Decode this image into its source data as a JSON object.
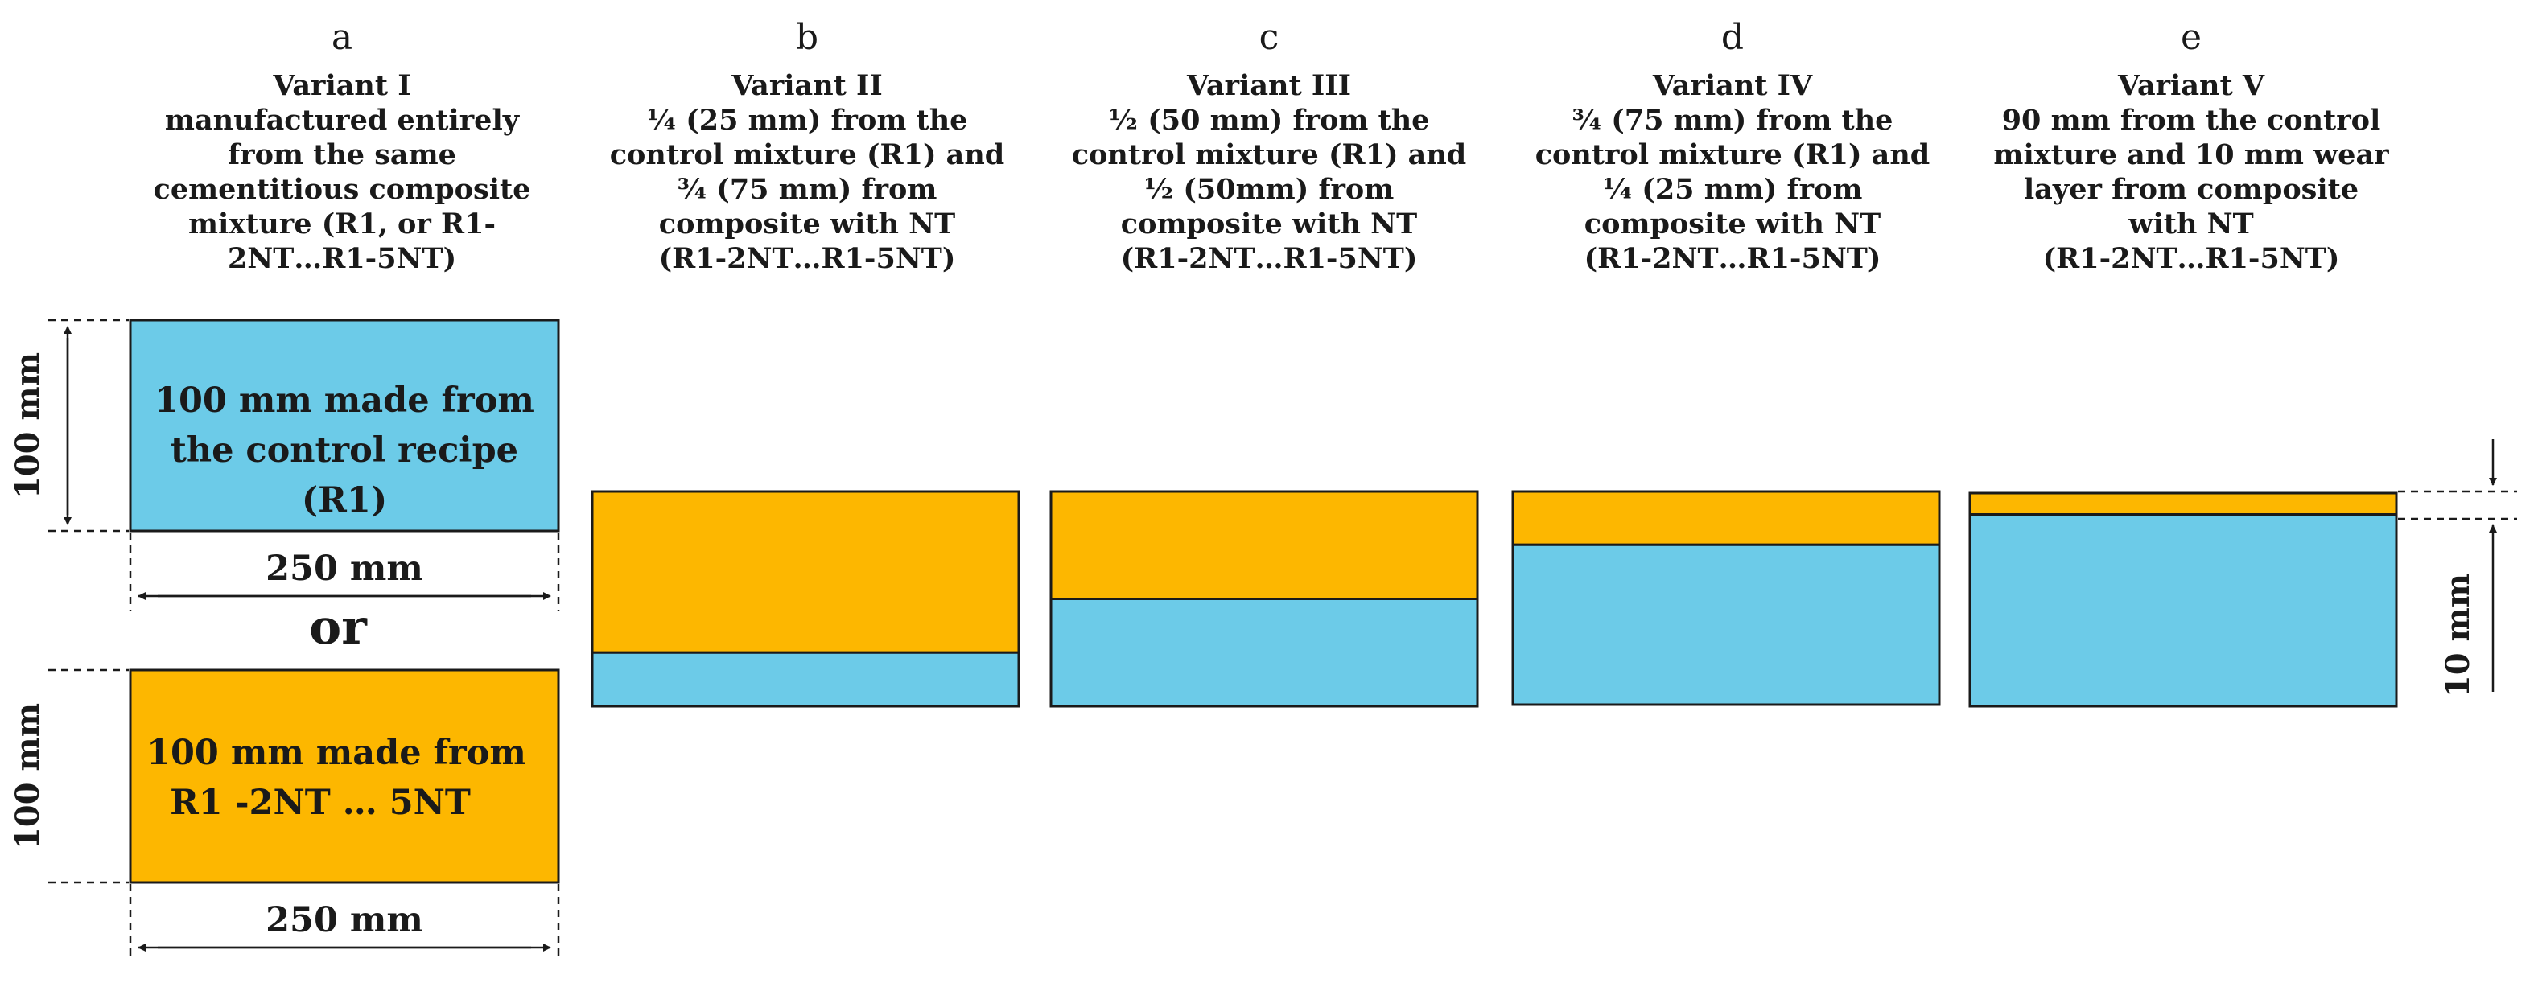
{
  "colors": {
    "control_blue": "#6ccbe8",
    "composite_orange": "#fdb700",
    "outline": "#1a1a1a"
  },
  "columns": [
    {
      "letter": "a",
      "lines": [
        "Variant I",
        "manufactured entirely",
        "from the same",
        "cementitious composite",
        "mixture (R1, or R1-",
        "2NT…R1-5NT)"
      ],
      "wear_fraction": null
    },
    {
      "letter": "b",
      "lines": [
        "Variant II",
        "¼ (25 mm) from the",
        "control mixture (R1) and",
        "¾  (75 mm) from",
        "composite with NT",
        "(R1-2NT…R1-5NT)"
      ],
      "wear_fraction": 0.75
    },
    {
      "letter": "c",
      "lines": [
        "Variant III",
        "½ (50 mm) from the",
        "control mixture (R1) and",
        "½  (50mm) from",
        "composite with NT",
        "(R1-2NT…R1-5NT)"
      ],
      "wear_fraction": 0.5
    },
    {
      "letter": "d",
      "lines": [
        "Variant IV",
        "¾  (75 mm) from the",
        "control mixture (R1) and",
        "¼ (25 mm) from",
        "composite with NT",
        "(R1-2NT…R1-5NT)"
      ],
      "wear_fraction": 0.25
    },
    {
      "letter": "e",
      "lines": [
        "Variant V",
        "90 mm from the control",
        "mixture and 10 mm wear",
        "layer from composite",
        "with NT",
        "(R1-2NT…R1-5NT)"
      ],
      "wear_fraction": 0.1
    }
  ],
  "variant_a": {
    "top_block_lines": [
      "100 mm made from",
      "the control recipe",
      "(R1)"
    ],
    "bottom_block_lines": [
      "100 mm made from",
      "R1 -2NT … 5NT"
    ],
    "height_label": "100 mm",
    "width_label": "250 mm",
    "or_label": "or"
  },
  "variant_e": {
    "wear_layer_label": "10 mm"
  }
}
